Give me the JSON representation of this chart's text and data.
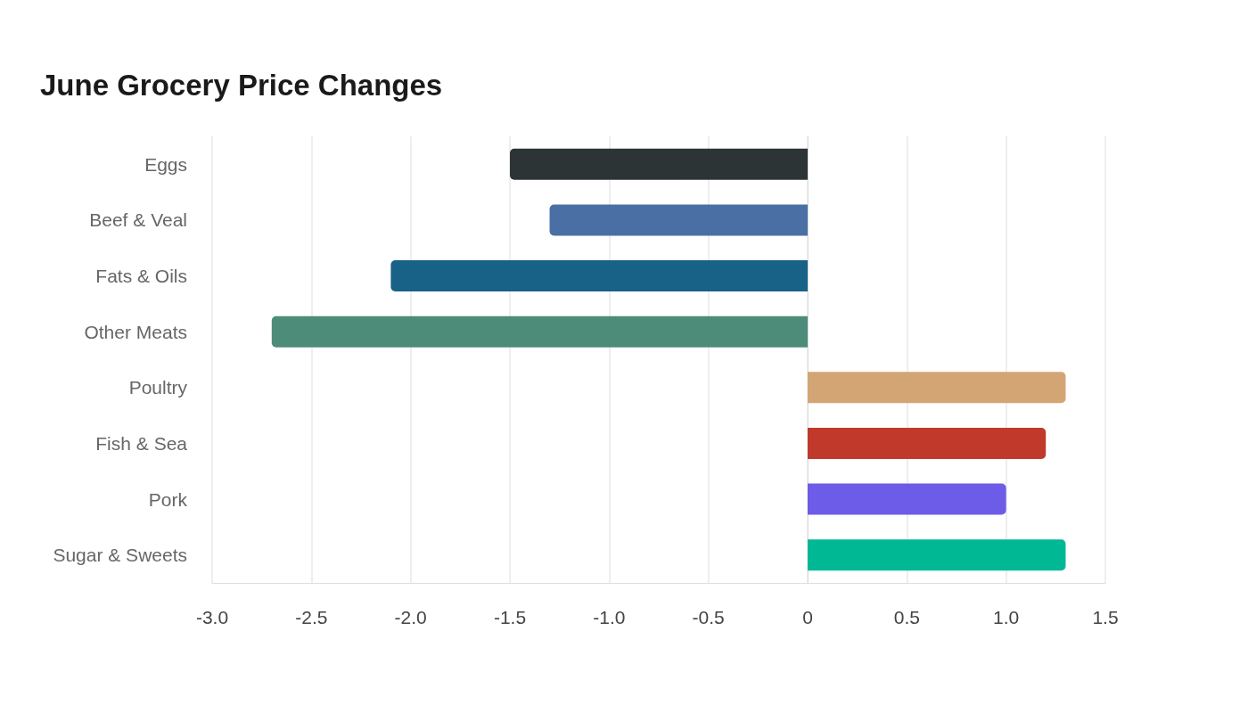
{
  "chart_data": {
    "type": "bar",
    "orientation": "horizontal",
    "title": "June Grocery Price Changes",
    "categories": [
      "Eggs",
      "Beef & Veal",
      "Fats & Oils",
      "Other Meats",
      "Poultry",
      "Fish & Sea",
      "Pork",
      "Sugar & Sweets"
    ],
    "values": [
      -1.5,
      -1.3,
      -2.1,
      -2.7,
      1.3,
      1.2,
      1.0,
      1.3
    ],
    "colors": [
      "#2d3436",
      "#4a6fa5",
      "#186187",
      "#4e8c7a",
      "#d4a574",
      "#c0392b",
      "#6c5ce7",
      "#00b894"
    ],
    "xlim": [
      -3,
      1.5
    ],
    "xticks": [
      {
        "value": -3,
        "label": "-3.0"
      },
      -2.5,
      {
        "value": -2,
        "label": "-2.0"
      },
      -1.5,
      {
        "value": -1,
        "label": "-1.0"
      },
      -0.5,
      0,
      0.5,
      {
        "value": 1,
        "label": "1.0"
      },
      1.5
    ],
    "grid": "x"
  }
}
